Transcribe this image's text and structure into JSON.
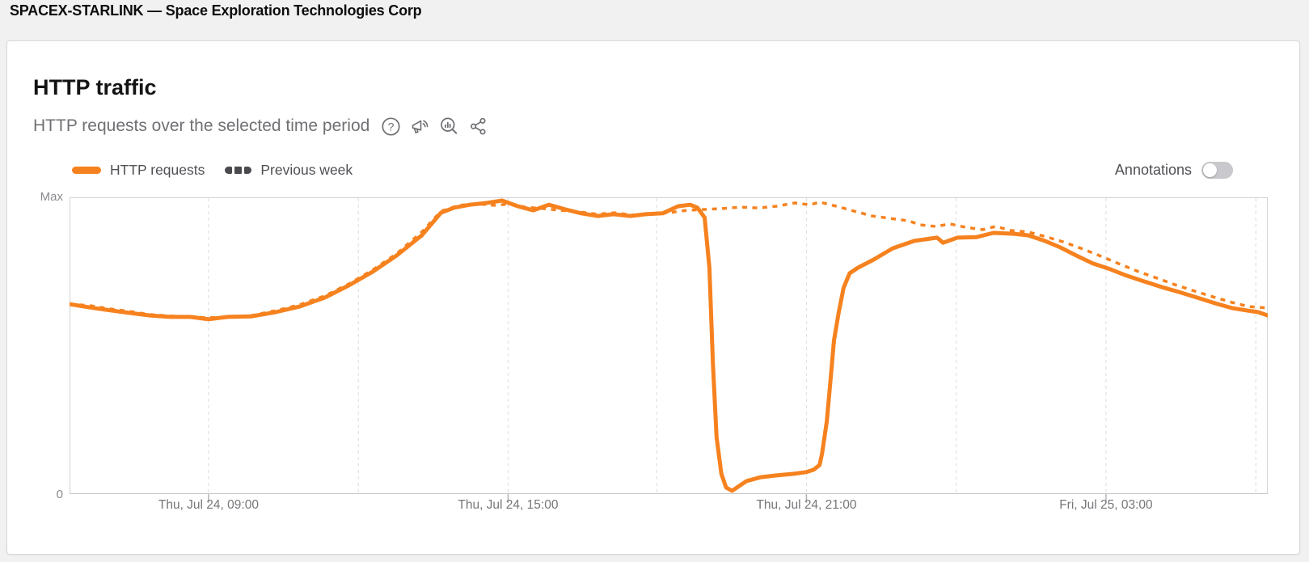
{
  "header": {
    "title": "SPACEX-STARLINK — Space Exploration Technologies Corp"
  },
  "card": {
    "title": "HTTP traffic",
    "subtitle": "HTTP requests over the selected time period",
    "toolbar_icons": [
      "help-icon",
      "announcement-icon",
      "explore-icon",
      "share-icon"
    ],
    "legend": [
      {
        "label": "HTTP requests",
        "style": "solid",
        "swatch_color": "#f6821f"
      },
      {
        "label": "Previous week",
        "style": "dashed",
        "swatch_color": "#4a4a4e"
      }
    ],
    "annotations": {
      "label": "Annotations",
      "state": "off"
    }
  },
  "chart_data": {
    "type": "line",
    "title": "HTTP traffic",
    "line_color": "#f6821f",
    "grid": "vertical-dashed",
    "legend_position": "top-left",
    "y_axis": {
      "top_label": "Max",
      "bottom_label": "0",
      "range_pct": [
        0,
        100
      ]
    },
    "x_axis": {
      "window": "24 hours",
      "gridlines_pct": [
        11.6,
        24.1,
        36.6,
        49.0,
        61.5,
        74.0,
        86.5,
        99.0
      ],
      "ticks": [
        {
          "pct": 11.6,
          "label": "Thu, Jul 24, 09:00"
        },
        {
          "pct": 36.6,
          "label": "Thu, Jul 24, 15:00"
        },
        {
          "pct": 61.5,
          "label": "Thu, Jul 24, 21:00"
        },
        {
          "pct": 86.5,
          "label": "Fri, Jul 25, 03:00"
        }
      ]
    },
    "series": [
      {
        "name": "HTTP requests",
        "style": "solid",
        "points_pct": [
          [
            0,
            64
          ],
          [
            1.7,
            62.9
          ],
          [
            3.4,
            61.9
          ],
          [
            5.1,
            61
          ],
          [
            6.7,
            60.2
          ],
          [
            8.4,
            59.7
          ],
          [
            10.1,
            59.7
          ],
          [
            11.6,
            58.9
          ],
          [
            13.2,
            59.7
          ],
          [
            15.2,
            59.9
          ],
          [
            17.2,
            61.3
          ],
          [
            19.2,
            63.2
          ],
          [
            21.3,
            66.2
          ],
          [
            23.3,
            70.3
          ],
          [
            25.3,
            74.9
          ],
          [
            27.3,
            80.4
          ],
          [
            29.4,
            87.2
          ],
          [
            31,
            94.8
          ],
          [
            32.1,
            96.5
          ],
          [
            33.4,
            97.5
          ],
          [
            34.8,
            98.1
          ],
          [
            36.1,
            98.9
          ],
          [
            37.4,
            97
          ],
          [
            38.7,
            95.6
          ],
          [
            40,
            97.5
          ],
          [
            41.4,
            95.9
          ],
          [
            42.7,
            94.6
          ],
          [
            44.1,
            93.7
          ],
          [
            45.4,
            94.3
          ],
          [
            46.8,
            93.7
          ],
          [
            48.1,
            94.3
          ],
          [
            49.5,
            94.6
          ],
          [
            50.8,
            97
          ],
          [
            51.8,
            97.5
          ],
          [
            52.4,
            96.5
          ],
          [
            53,
            93.2
          ],
          [
            53.4,
            76.3
          ],
          [
            53.7,
            43.6
          ],
          [
            54,
            19.1
          ],
          [
            54.4,
            6.8
          ],
          [
            54.8,
            2.2
          ],
          [
            55.3,
            1.1
          ],
          [
            55.8,
            2.5
          ],
          [
            56.5,
            4.4
          ],
          [
            57.7,
            5.7
          ],
          [
            59,
            6.3
          ],
          [
            60.4,
            6.8
          ],
          [
            61.5,
            7.4
          ],
          [
            62.1,
            8.2
          ],
          [
            62.6,
            9.8
          ],
          [
            62.8,
            13.6
          ],
          [
            63.2,
            24.5
          ],
          [
            63.5,
            38.1
          ],
          [
            63.8,
            51.8
          ],
          [
            64.2,
            61.3
          ],
          [
            64.6,
            69.5
          ],
          [
            65.1,
            74.4
          ],
          [
            65.8,
            76.3
          ],
          [
            67.1,
            79
          ],
          [
            68.7,
            82.8
          ],
          [
            70.5,
            85.3
          ],
          [
            72.4,
            86.4
          ],
          [
            72.9,
            84.7
          ],
          [
            74.1,
            86.4
          ],
          [
            75.7,
            86.6
          ],
          [
            77.1,
            88
          ],
          [
            78.8,
            87.7
          ],
          [
            80,
            87.2
          ],
          [
            81.4,
            85.3
          ],
          [
            82.7,
            83.1
          ],
          [
            84,
            80.4
          ],
          [
            85.4,
            77.7
          ],
          [
            86.7,
            76
          ],
          [
            88.1,
            73.8
          ],
          [
            89.5,
            71.9
          ],
          [
            91.1,
            69.8
          ],
          [
            92.6,
            68.1
          ],
          [
            94.1,
            66.2
          ],
          [
            95.6,
            64.3
          ],
          [
            97,
            62.7
          ],
          [
            98.2,
            61.9
          ],
          [
            99.2,
            61.3
          ],
          [
            100,
            60.2
          ]
        ]
      },
      {
        "name": "Previous week",
        "style": "dashed",
        "points_pct": [
          [
            0,
            64
          ],
          [
            1.7,
            63.5
          ],
          [
            3.4,
            62.4
          ],
          [
            5.1,
            61.5
          ],
          [
            6.7,
            60.5
          ],
          [
            8.4,
            60
          ],
          [
            10.1,
            59.7
          ],
          [
            11.6,
            59.4
          ],
          [
            13.2,
            59.7
          ],
          [
            15.2,
            60.2
          ],
          [
            17.2,
            61.8
          ],
          [
            19.2,
            63.8
          ],
          [
            21.3,
            66.8
          ],
          [
            23.3,
            70.8
          ],
          [
            25.3,
            75.5
          ],
          [
            27.3,
            81
          ],
          [
            29.4,
            88.3
          ],
          [
            31,
            95.3
          ],
          [
            32.5,
            97.3
          ],
          [
            34,
            97.8
          ],
          [
            35.5,
            97.3
          ],
          [
            36.8,
            97.8
          ],
          [
            38,
            96.7
          ],
          [
            39.5,
            96.2
          ],
          [
            41,
            95.6
          ],
          [
            42.5,
            95.1
          ],
          [
            44,
            94.3
          ],
          [
            45.5,
            94.8
          ],
          [
            47,
            94
          ],
          [
            48.5,
            94.3
          ],
          [
            50,
            94.8
          ],
          [
            51.5,
            95.6
          ],
          [
            53,
            95.9
          ],
          [
            54.5,
            96.2
          ],
          [
            56,
            96.7
          ],
          [
            57.5,
            96.4
          ],
          [
            59,
            97
          ],
          [
            60.5,
            98.1
          ],
          [
            61.8,
            97.5
          ],
          [
            62.6,
            98.4
          ],
          [
            64,
            97
          ],
          [
            65.5,
            95.3
          ],
          [
            67,
            93.7
          ],
          [
            68.5,
            92.9
          ],
          [
            70,
            92.1
          ],
          [
            71,
            90.7
          ],
          [
            72.3,
            90.2
          ],
          [
            73.5,
            91
          ],
          [
            74.8,
            89.9
          ],
          [
            76.2,
            89.1
          ],
          [
            77.3,
            90.2
          ],
          [
            78.6,
            88.8
          ],
          [
            80,
            88.3
          ],
          [
            81.5,
            86.7
          ],
          [
            83,
            84.9
          ],
          [
            84.6,
            82.5
          ],
          [
            86.1,
            80.1
          ],
          [
            87.7,
            77.4
          ],
          [
            89.2,
            75
          ],
          [
            90.8,
            72.7
          ],
          [
            92.3,
            70.5
          ],
          [
            93.9,
            68.4
          ],
          [
            95.4,
            66.5
          ],
          [
            97,
            64.6
          ],
          [
            98.4,
            63.2
          ],
          [
            100,
            62.7
          ]
        ]
      }
    ]
  }
}
